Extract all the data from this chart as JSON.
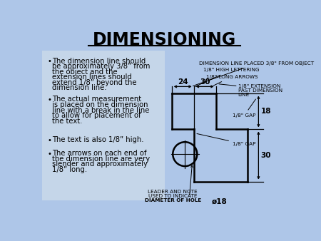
{
  "title": "DIMENSIONING",
  "bg_color": "#aec6e8",
  "text_panel_color": "#c8d8ea",
  "bullet_lines": [
    [
      "The dimension line should",
      "be approximately 3/8” from",
      "the object and the",
      "extension lines should",
      "extend 1/8” beyond the",
      "dimension line."
    ],
    [
      "The actual measurement",
      "is placed on the dimension",
      "line with a break in the line",
      "to allow for placement of",
      "the text."
    ],
    [
      "The text is also 1/8” high."
    ],
    [
      "The arrows on each end of",
      "the dimension line are very",
      "slender and approximately",
      "1/8” long."
    ]
  ],
  "ann0": "DIMENSION LINE PLACED 3/8\" FROM OBJECT",
  "ann1": "1/8\" HIGH LETTERING",
  "ann2": "1/8\" LONG ARROWS",
  "ann3_lines": [
    "1/8\" EXTENSION",
    "PAST DIMENSION",
    "LINE"
  ],
  "ann4": "1/8\" GAP",
  "ann5": "1/8\" GAP",
  "ann6_lines": [
    "LEADER AND NOTE",
    "USED TO INDICATE",
    "DIAMETER OF HOLE"
  ],
  "ann7": "ø18",
  "dim24": "24",
  "dim30h": "30",
  "dim18": "18",
  "dim30v": "30"
}
